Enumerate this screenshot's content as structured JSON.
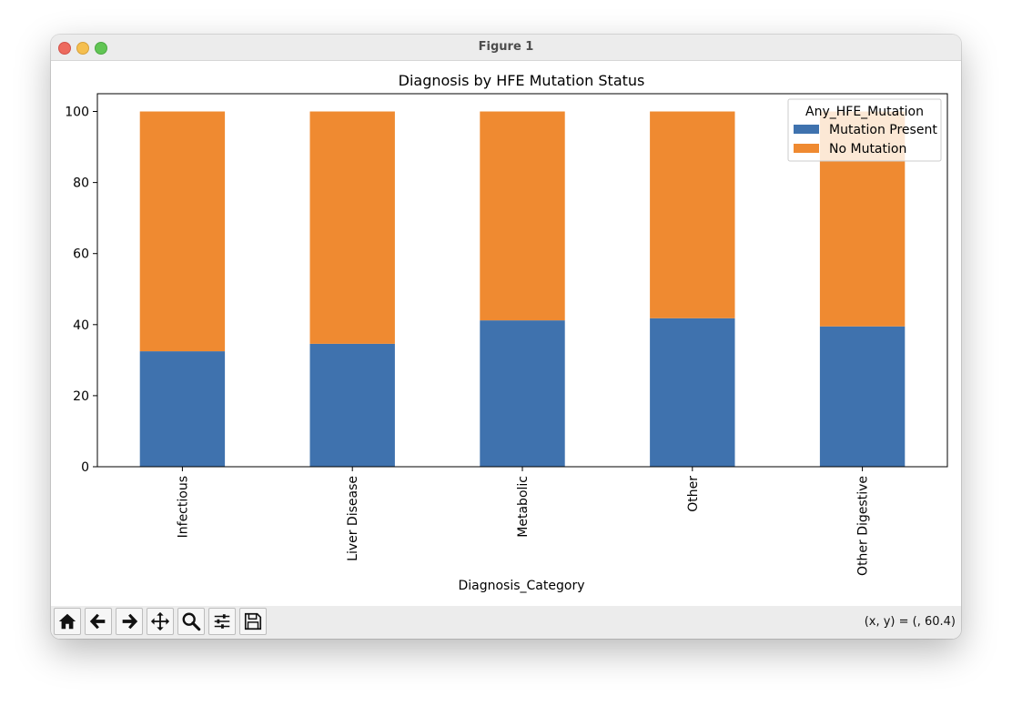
{
  "window": {
    "title": "Figure 1"
  },
  "toolbar": {
    "buttons": [
      "home-icon",
      "back-arrow-icon",
      "forward-arrow-icon",
      "pan-icon",
      "zoom-icon",
      "subplots-icon",
      "save-icon"
    ],
    "coords": "(x, y) = (, 60.4)"
  },
  "colors": {
    "mutation": "#3f72ae",
    "no_mutation": "#ef8a31"
  },
  "chart_data": {
    "type": "bar",
    "stacked": true,
    "title": "Diagnosis by HFE Mutation Status",
    "xlabel": "Diagnosis_Category",
    "ylabel": "",
    "ylim": [
      0,
      105
    ],
    "yticks": [
      0,
      20,
      40,
      60,
      80,
      100
    ],
    "categories": [
      "Infectious",
      "Liver Disease",
      "Metabolic",
      "Other",
      "Other Digestive"
    ],
    "series": [
      {
        "name": "Mutation Present",
        "color": "#3f72ae",
        "values": [
          32.5,
          34.6,
          41.2,
          41.8,
          39.5
        ]
      },
      {
        "name": "No Mutation",
        "color": "#ef8a31",
        "values": [
          67.5,
          65.4,
          58.8,
          58.2,
          60.5
        ]
      }
    ],
    "legend": {
      "title": "Any_HFE_Mutation",
      "position": "top-right"
    },
    "grid": false
  }
}
